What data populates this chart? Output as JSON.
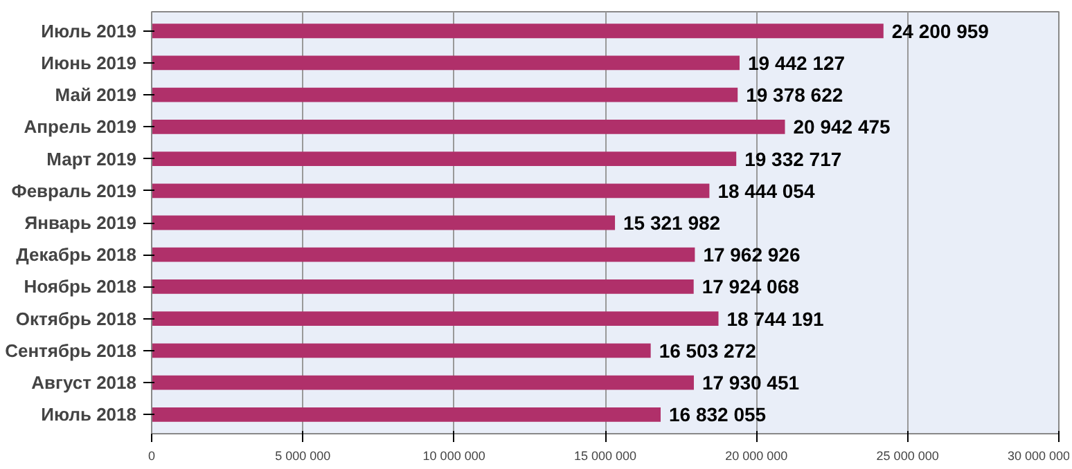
{
  "chart_data": {
    "type": "bar",
    "orientation": "horizontal",
    "categories": [
      "Июль 2019",
      "Июнь 2019",
      "Май 2019",
      "Апрель 2019",
      "Март 2019",
      "Февраль 2019",
      "Январь 2019",
      "Декабрь 2018",
      "Ноябрь 2018",
      "Октябрь 2018",
      "Сентябрь 2018",
      "Август 2018",
      "Июль 2018"
    ],
    "values": [
      24200959,
      19442127,
      19378622,
      20942475,
      19332717,
      18444054,
      15321982,
      17962926,
      17924068,
      18744191,
      16503272,
      17930451,
      16832055
    ],
    "value_labels": [
      "24 200 959",
      "19 442 127",
      "19 378 622",
      "20 942 475",
      "19 332 717",
      "18 444 054",
      "15 321 982",
      "17 962 926",
      "17 924 068",
      "18 744 191",
      "16 503 272",
      "17 930 451",
      "16 832 055"
    ],
    "color": "#b0306a",
    "xlim": [
      0,
      30000000
    ],
    "xticks": [
      {
        "value": 0,
        "label": "0"
      },
      {
        "value": 5000000,
        "label": "5 000 000"
      },
      {
        "value": 10000000,
        "label": "10 000 000"
      },
      {
        "value": 15000000,
        "label": "15 000 000"
      },
      {
        "value": 20000000,
        "label": "20 000 000"
      },
      {
        "value": 25000000,
        "label": "25 000 000"
      },
      {
        "value": 30000000,
        "label": "30 000 000"
      }
    ],
    "grid": "x"
  }
}
